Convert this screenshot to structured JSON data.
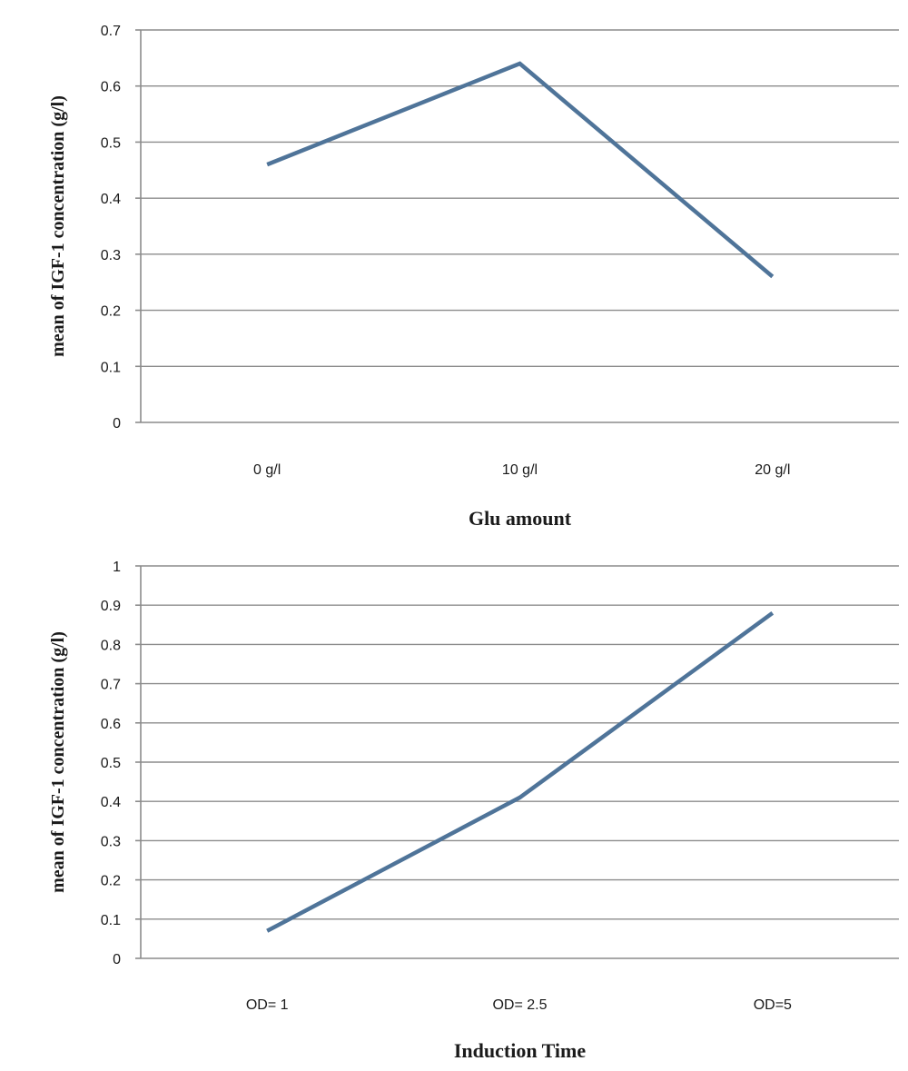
{
  "chart_data": [
    {
      "type": "line",
      "title": "",
      "xlabel": "Glu amount",
      "ylabel": "mean of  IGF-1 concentration (g/l)",
      "categories": [
        "0 g/l",
        "10 g/l",
        "20 g/l"
      ],
      "series": [
        {
          "values": [
            0.46,
            0.64,
            0.26
          ],
          "color": "#4f7499"
        }
      ],
      "ylim": [
        0,
        0.7
      ],
      "ytick_step": 0.1,
      "yticks": [
        "0",
        "0.1",
        "0.2",
        "0.3",
        "0.4",
        "0.5",
        "0.6",
        "0.7"
      ],
      "grid": true,
      "legend": "none"
    },
    {
      "type": "line",
      "title": "",
      "xlabel": "Induction Time",
      "ylabel": "mean of  IGF-1 concentration (g/l)",
      "categories": [
        "OD= 1",
        "OD= 2.5",
        "OD=5"
      ],
      "series": [
        {
          "values": [
            0.07,
            0.41,
            0.88
          ],
          "color": "#4f7499"
        }
      ],
      "ylim": [
        0,
        1
      ],
      "ytick_step": 0.1,
      "yticks": [
        "0",
        "0.1",
        "0.2",
        "0.3",
        "0.4",
        "0.5",
        "0.6",
        "0.7",
        "0.8",
        "0.9",
        "1"
      ],
      "grid": true,
      "legend": "none"
    }
  ]
}
